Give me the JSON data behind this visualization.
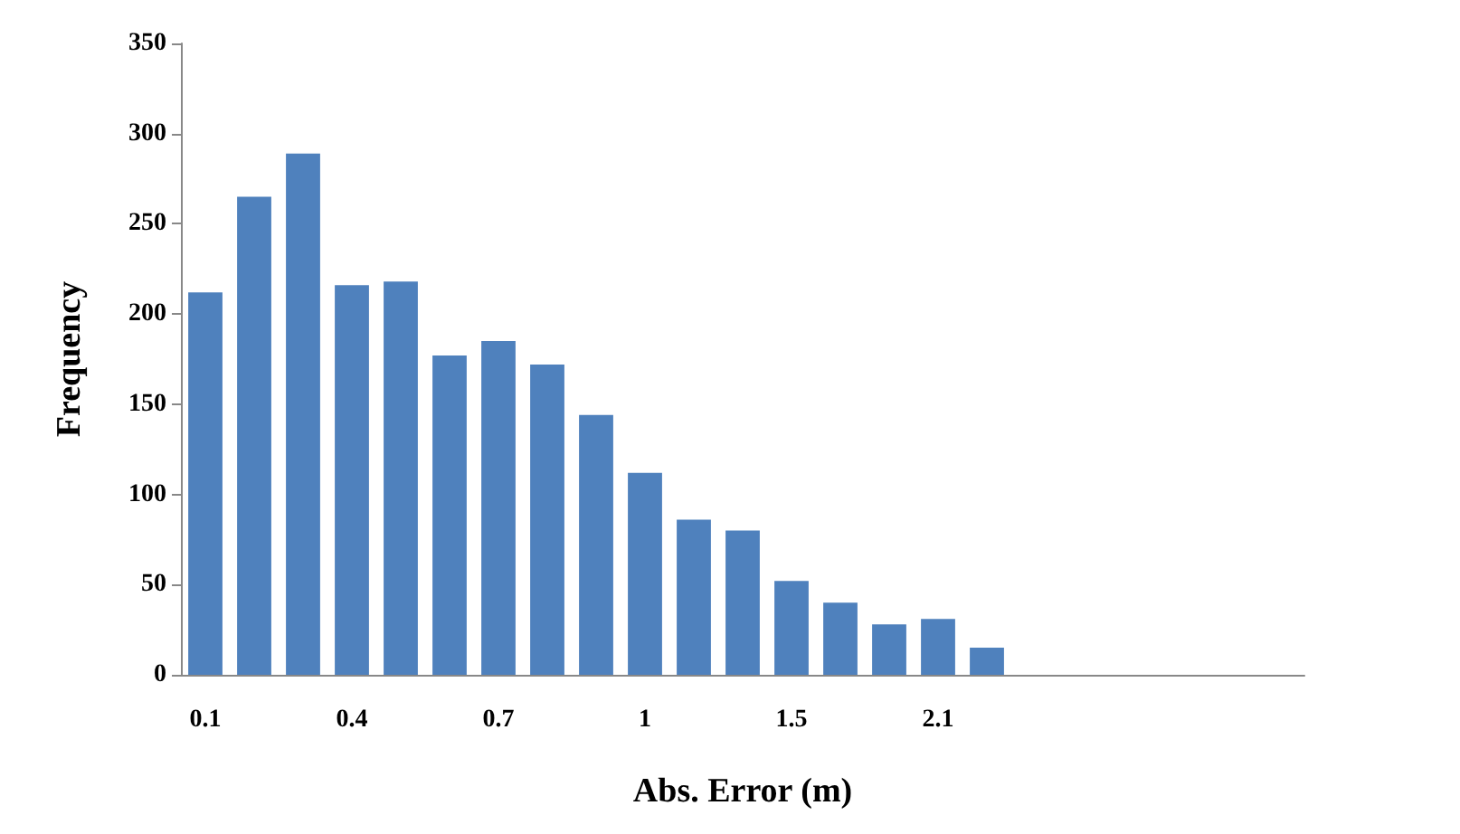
{
  "chart_data": {
    "type": "bar",
    "xlabel": "Abs. Error (m)",
    "ylabel": "Frequency",
    "categories": [
      "0.1",
      null,
      null,
      "0.4",
      null,
      null,
      "0.7",
      null,
      null,
      "1",
      null,
      null,
      "1.5",
      null,
      null,
      "2.1",
      null,
      null,
      null,
      null,
      null,
      null,
      null
    ],
    "values": [
      212,
      265,
      289,
      216,
      218,
      177,
      185,
      172,
      144,
      112,
      86,
      80,
      52,
      40,
      28,
      31,
      15,
      null,
      null,
      null,
      null,
      null,
      null
    ],
    "color": "#4f81bd",
    "ylim": [
      0,
      350
    ],
    "yticks": [
      0,
      50,
      100,
      150,
      200,
      250,
      300,
      350
    ]
  }
}
